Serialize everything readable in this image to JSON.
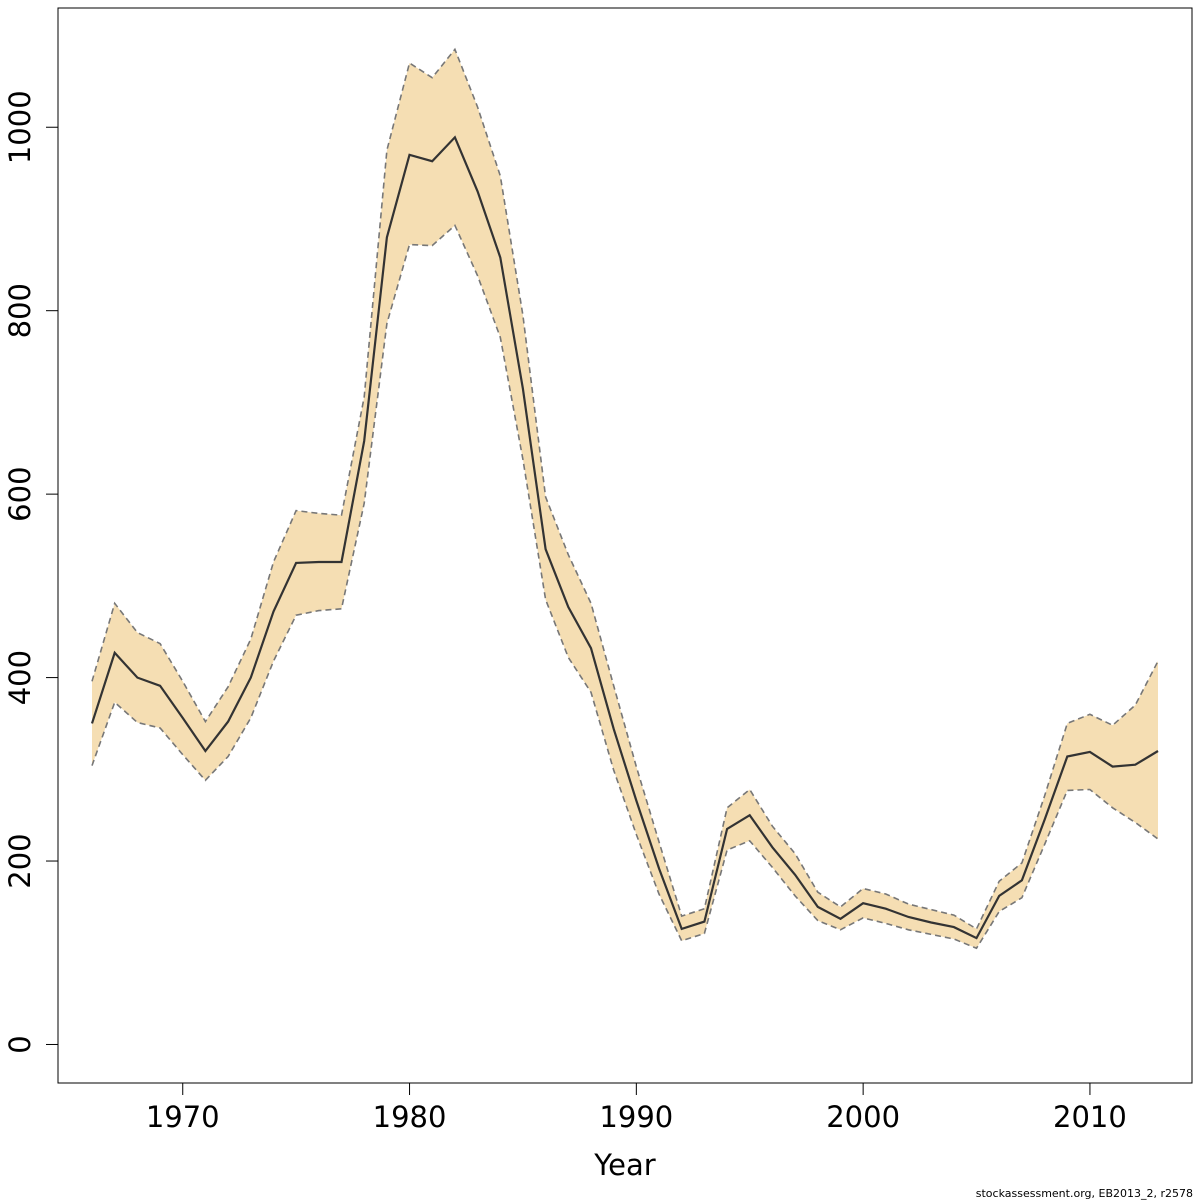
{
  "chart_data": {
    "type": "area",
    "title": "",
    "xlabel": "Year",
    "ylabel": "",
    "xlim": [
      1964.5,
      2014.5
    ],
    "ylim": [
      -42,
      1130
    ],
    "xticks": [
      1970,
      1980,
      1990,
      2000,
      2010
    ],
    "yticks": [
      0,
      200,
      400,
      600,
      800,
      1000
    ],
    "grid": false,
    "legend": "none",
    "x": [
      1966,
      1967,
      1968,
      1969,
      1970,
      1971,
      1972,
      1973,
      1974,
      1975,
      1976,
      1977,
      1978,
      1979,
      1980,
      1981,
      1982,
      1983,
      1984,
      1985,
      1986,
      1987,
      1988,
      1989,
      1990,
      1991,
      1992,
      1993,
      1994,
      1995,
      1996,
      1997,
      1998,
      1999,
      2000,
      2001,
      2002,
      2003,
      2004,
      2005,
      2006,
      2007,
      2008,
      2009,
      2010,
      2011,
      2012,
      2013
    ],
    "series": [
      {
        "role": "estimate",
        "values": [
          350,
          427,
          400,
          391,
          356,
          320,
          352,
          400,
          472,
          525,
          526,
          526,
          658,
          880,
          970,
          963,
          989,
          930,
          858,
          715,
          540,
          477,
          432,
          344,
          266,
          192,
          126,
          134,
          235,
          250,
          215,
          185,
          150,
          137,
          154,
          148,
          139,
          133,
          128,
          116,
          162,
          179,
          245,
          314,
          319,
          303,
          305,
          320
        ]
      },
      {
        "role": "upper",
        "values": [
          396,
          481,
          449,
          437,
          396,
          352,
          390,
          442,
          526,
          582,
          579,
          577,
          706,
          975,
          1070,
          1054,
          1085,
          1022,
          947,
          795,
          597,
          534,
          481,
          391,
          303,
          221,
          140,
          148,
          258,
          278,
          238,
          208,
          166,
          150,
          170,
          164,
          153,
          147,
          141,
          126,
          178,
          198,
          271,
          350,
          360,
          348,
          370,
          418
        ]
      },
      {
        "role": "lower",
        "values": [
          304,
          373,
          351,
          345,
          316,
          288,
          314,
          356,
          418,
          468,
          473,
          475,
          590,
          786,
          872,
          871,
          893,
          838,
          771,
          638,
          485,
          422,
          384,
          299,
          229,
          164,
          113,
          121,
          212,
          222,
          193,
          162,
          135,
          125,
          138,
          132,
          125,
          120,
          115,
          105,
          145,
          160,
          218,
          277,
          278,
          258,
          242,
          224
        ]
      }
    ]
  },
  "footer_text": "stockassessment.org, EB2013_2, r2578",
  "colors": {
    "band": "#f5deb3",
    "line": "#333333",
    "band_edge": "#777777",
    "axis": "#000000"
  }
}
